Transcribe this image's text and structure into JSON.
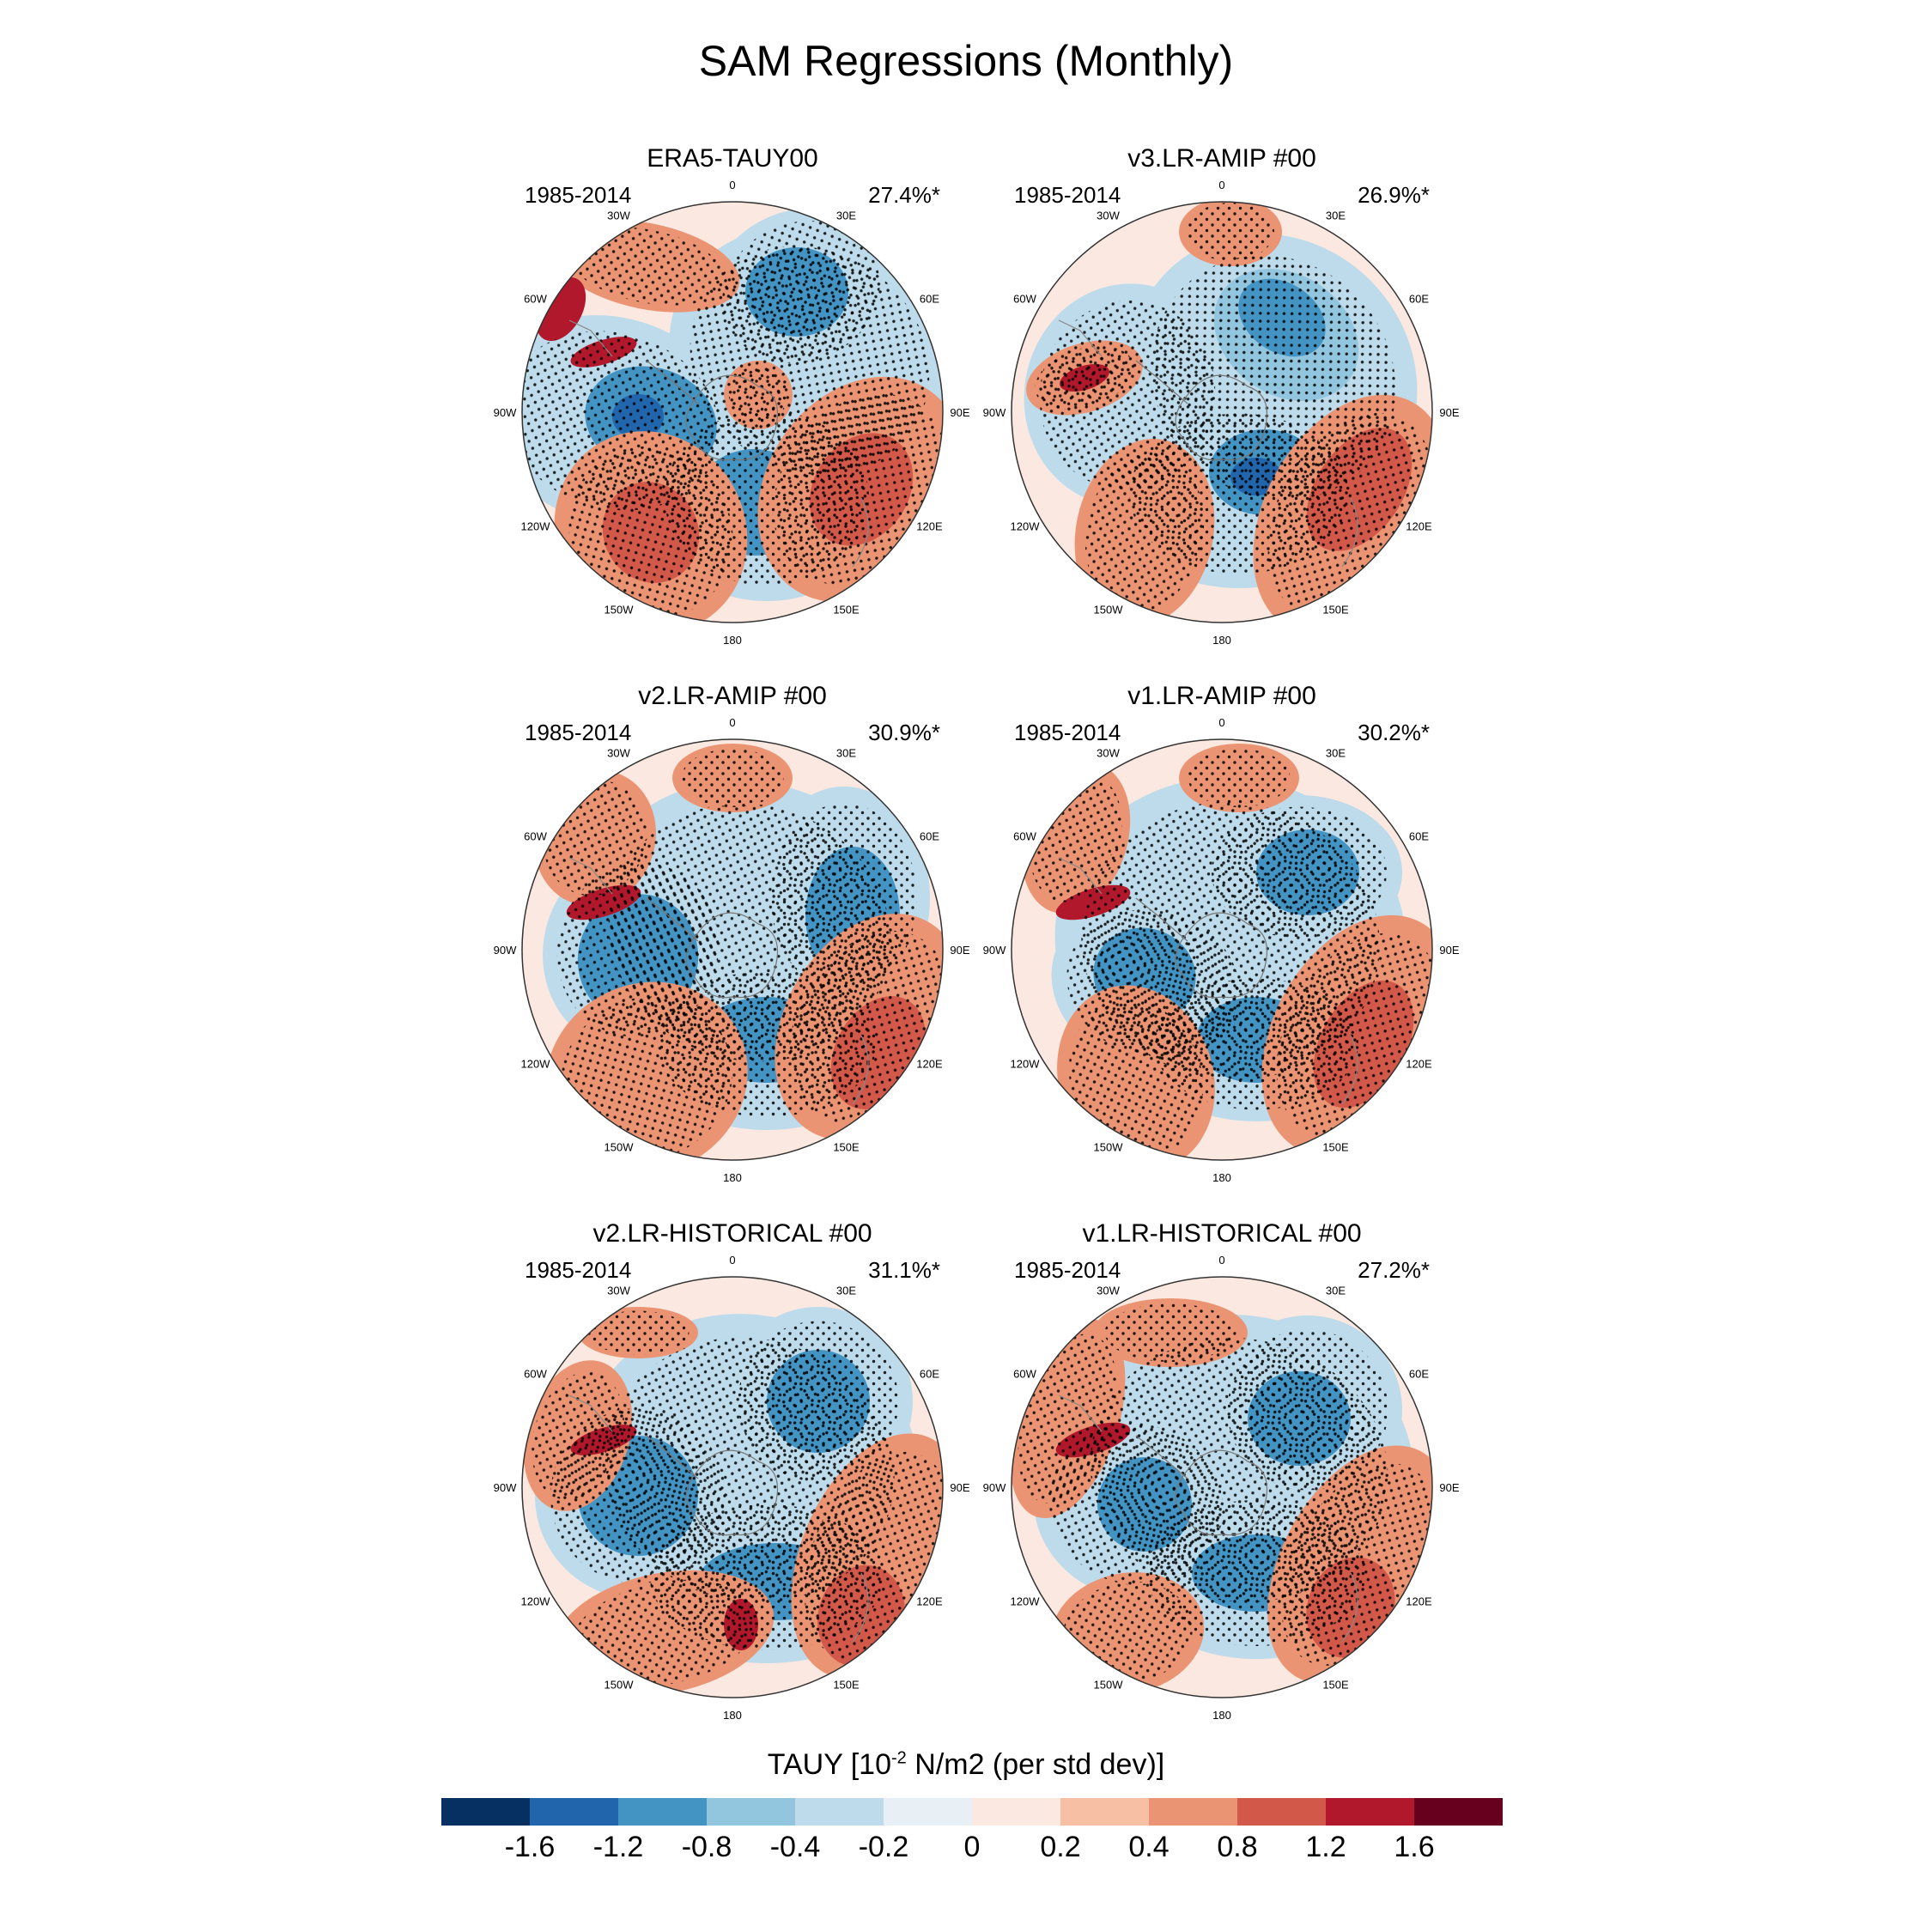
{
  "title": "SAM Regressions (Monthly)",
  "panels": [
    {
      "title": "ERA5-TAUY00",
      "period": "1985-2014",
      "percent": "27.4%*"
    },
    {
      "title": "v3.LR-AMIP  #00",
      "period": "1985-2014",
      "percent": "26.9%*"
    },
    {
      "title": "v2.LR-AMIP  #00",
      "period": "1985-2014",
      "percent": "30.9%*"
    },
    {
      "title": "v1.LR-AMIP  #00",
      "period": "1985-2014",
      "percent": "30.2%*"
    },
    {
      "title": "v2.LR-HISTORICAL  #00",
      "period": "1985-2014",
      "percent": "31.1%*"
    },
    {
      "title": "v1.LR-HISTORICAL  #00",
      "period": "1985-2014",
      "percent": "27.2%*"
    }
  ],
  "longitude_labels": [
    "0",
    "30E",
    "60E",
    "90E",
    "120E",
    "150E",
    "180",
    "150W",
    "120W",
    "90W",
    "60W",
    "30W"
  ],
  "colorbar": {
    "title_prefix": "TAUY [10",
    "title_exp": "-2",
    "title_suffix": " N/m2 (per std dev)]",
    "colors": [
      "#053061",
      "#2166ac",
      "#4393c3",
      "#92c5de",
      "#bddbea",
      "#e8eff5",
      "#fbe8e0",
      "#f7c0a4",
      "#ea9473",
      "#d25849",
      "#b2182b",
      "#67001f"
    ],
    "tick_labels": [
      "-1.6",
      "-1.2",
      "-0.8",
      "-0.4",
      "-0.2",
      "0",
      "0.2",
      "0.4",
      "0.8",
      "1.2",
      "1.6"
    ]
  }
}
